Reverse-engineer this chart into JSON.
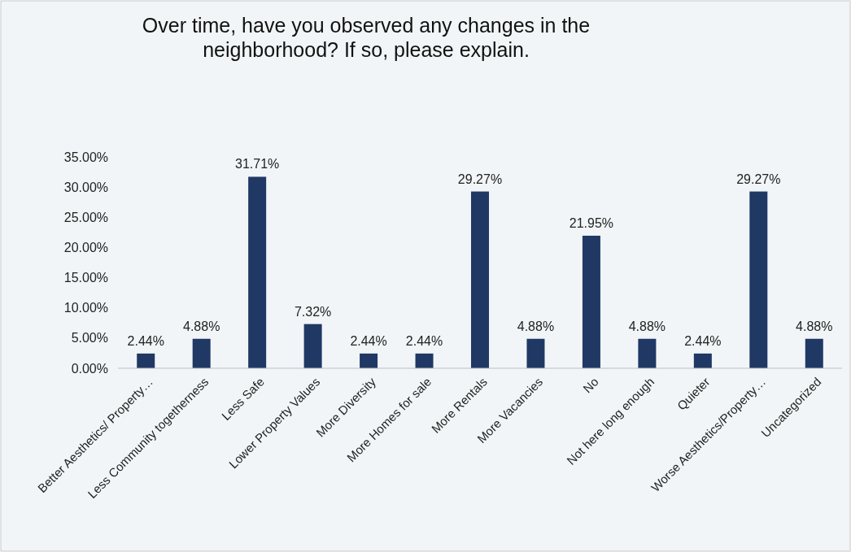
{
  "chart_data": {
    "type": "bar",
    "title": "Over time, have you observed any changes in the neighborhood? If so, please explain.",
    "categories": [
      "Better Aesthetics/ Property…",
      "Less Community togetherness",
      "Less Safe",
      "Lower Property Values",
      "More Diversity",
      "More Homes for sale",
      "More Rentals",
      "More Vacancies",
      "No",
      "Not here long enough",
      "Quieter",
      "Worse Aesthetics/Property…",
      "Uncategorized"
    ],
    "values": [
      2.44,
      4.88,
      31.71,
      7.32,
      2.44,
      2.44,
      29.27,
      4.88,
      21.95,
      4.88,
      2.44,
      29.27,
      4.88
    ],
    "value_labels": [
      "2.44%",
      "4.88%",
      "31.71%",
      "7.32%",
      "2.44%",
      "2.44%",
      "29.27%",
      "4.88%",
      "21.95%",
      "4.88%",
      "2.44%",
      "29.27%",
      "4.88%"
    ],
    "color": "#203864",
    "ylim": [
      0,
      35
    ],
    "yticks": [
      {
        "value": 0,
        "label": "0.00%"
      },
      {
        "value": 5,
        "label": "5.00%"
      },
      {
        "value": 10,
        "label": "10.00%"
      },
      {
        "value": 15,
        "label": "15.00%"
      },
      {
        "value": 20,
        "label": "20.00%"
      },
      {
        "value": 25,
        "label": "25.00%"
      },
      {
        "value": 30,
        "label": "30.00%"
      },
      {
        "value": 35,
        "label": "35.00%"
      }
    ],
    "grid": false
  }
}
